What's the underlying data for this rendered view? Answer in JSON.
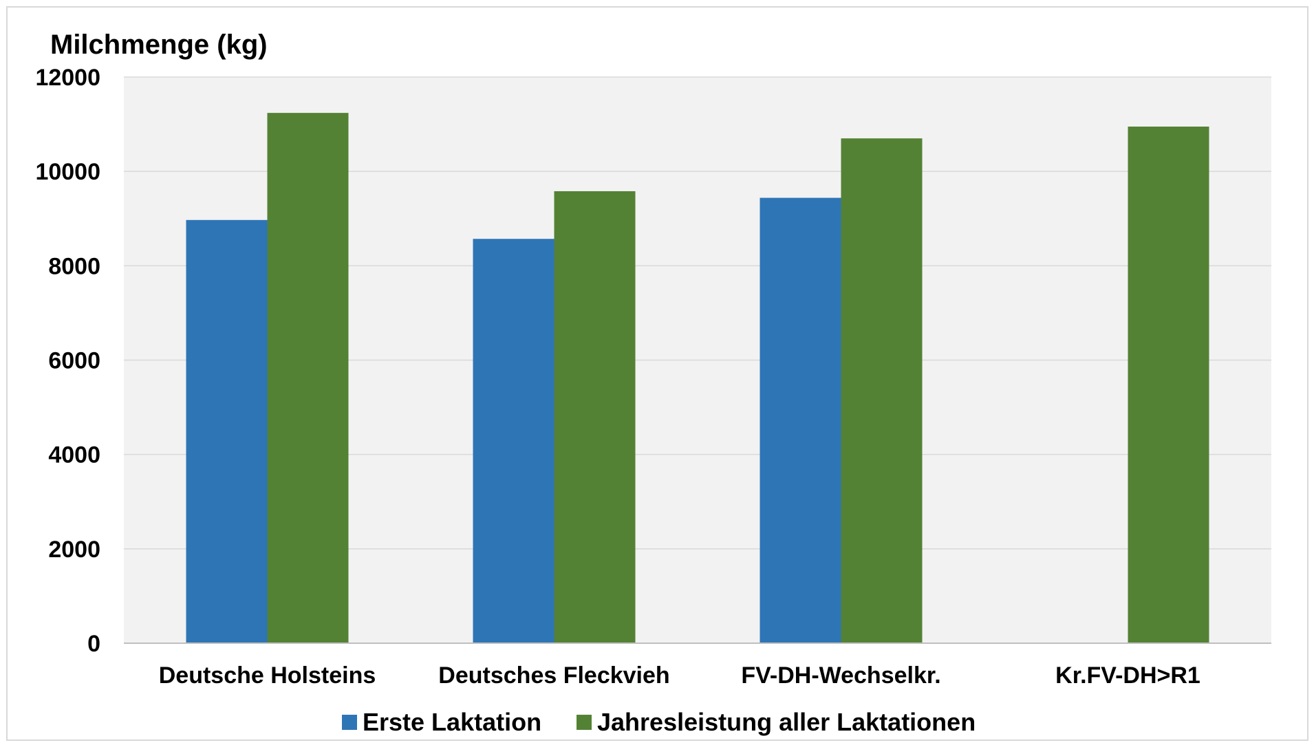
{
  "chart_data": {
    "type": "bar",
    "ylabel": "Milchmenge (kg)",
    "ylim": [
      0,
      12000
    ],
    "yticks": [
      0,
      2000,
      4000,
      6000,
      8000,
      10000,
      12000
    ],
    "categories": [
      "Deutsche Holsteins",
      "Deutsches Fleckvieh",
      "FV-DH-Wechselkr.",
      "Kr.FV-DH>R1"
    ],
    "series": [
      {
        "name": "Erste Laktation",
        "color": "#2e75b6",
        "values": [
          8970,
          8570,
          9440,
          null
        ]
      },
      {
        "name": "Jahresleistung aller Laktationen",
        "color": "#548235",
        "values": [
          11240,
          9580,
          10700,
          10950
        ]
      }
    ],
    "grid": true,
    "plot_background": "#f2f2f2",
    "gridline_color": "#d9d9d9",
    "legend_position": "bottom"
  }
}
